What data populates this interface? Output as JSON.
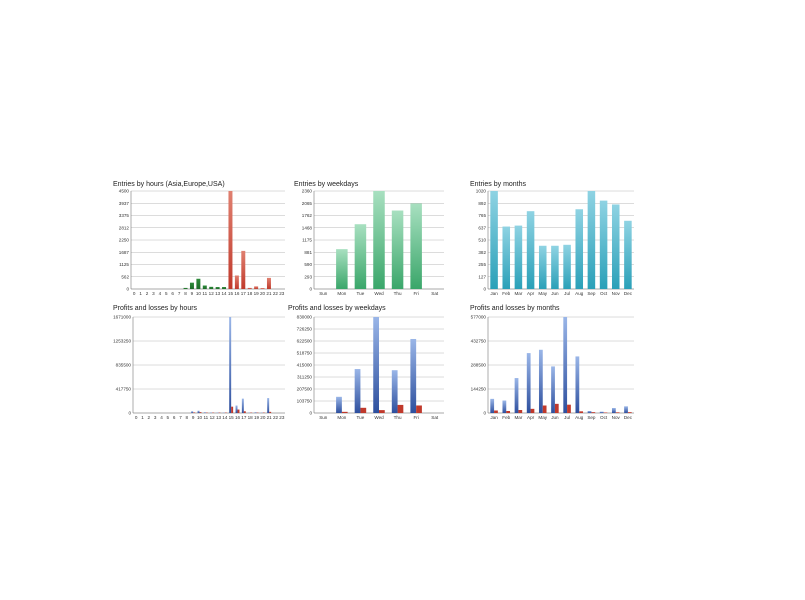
{
  "colors": {
    "green": "#2e8b3a",
    "green_dark": "#1d6a28",
    "red": "#c0392b",
    "red_light": "#e08070",
    "teal": "#2aa0b8",
    "teal_light": "#8fd3e3",
    "mint": "#3aa66a",
    "mint_light": "#a8e0c0",
    "blue": "#2d4f9e",
    "blue_light": "#9ab6e8",
    "loss": "#c0392b"
  },
  "chart_data": [
    {
      "id": "hours-entries",
      "type": "bar",
      "title": "Entries by hours (Asia,Europe,USA)",
      "categories": [
        "0",
        "1",
        "2",
        "3",
        "4",
        "5",
        "6",
        "7",
        "8",
        "9",
        "10",
        "11",
        "12",
        "13",
        "14",
        "15",
        "16",
        "17",
        "18",
        "19",
        "20",
        "21",
        "22",
        "23"
      ],
      "y_ticks": [
        "4500",
        "3937",
        "3375",
        "2812",
        "2250",
        "1687",
        "1125",
        "562",
        "0"
      ],
      "ylim": [
        0,
        4500
      ],
      "series": [
        {
          "values": [
            0,
            0,
            0,
            0,
            0,
            0,
            0,
            0,
            50,
            290,
            470,
            160,
            100,
            90,
            90,
            0,
            0,
            0,
            0,
            0,
            0,
            0,
            0,
            0
          ],
          "color_key": "green"
        },
        {
          "values": [
            0,
            0,
            0,
            0,
            0,
            0,
            0,
            0,
            0,
            0,
            0,
            0,
            0,
            0,
            0,
            4500,
            620,
            1750,
            50,
            120,
            40,
            510,
            0,
            0
          ],
          "color_key": "red"
        }
      ]
    },
    {
      "id": "weekday-entries",
      "type": "bar",
      "title": "Entries by weekdays",
      "categories": [
        "Sun",
        "Mon",
        "Tue",
        "Wed",
        "Thu",
        "Fri",
        "Sat"
      ],
      "y_ticks": [
        "2360",
        "2065",
        "1762",
        "1468",
        "1175",
        "881",
        "590",
        "293",
        "0"
      ],
      "ylim": [
        0,
        2360
      ],
      "series": [
        {
          "values": [
            0,
            960,
            1560,
            2360,
            1890,
            2060,
            0
          ],
          "color_key": "mint"
        }
      ]
    },
    {
      "id": "month-entries",
      "type": "bar",
      "title": "Entries by months",
      "categories": [
        "Jan",
        "Feb",
        "Mar",
        "Apr",
        "May",
        "Jun",
        "Jul",
        "Aug",
        "Sep",
        "Oct",
        "Nov",
        "Dec"
      ],
      "y_ticks": [
        "1020",
        "892",
        "765",
        "637",
        "510",
        "382",
        "255",
        "127",
        "0"
      ],
      "ylim": [
        0,
        1020
      ],
      "series": [
        {
          "values": [
            1020,
            650,
            660,
            810,
            450,
            450,
            460,
            830,
            1020,
            920,
            880,
            710
          ],
          "color_key": "teal"
        }
      ]
    },
    {
      "id": "hours-pl",
      "type": "bar",
      "title": "Profits and losses by hours",
      "categories": [
        "0",
        "1",
        "2",
        "3",
        "4",
        "5",
        "6",
        "7",
        "8",
        "9",
        "10",
        "11",
        "12",
        "13",
        "14",
        "15",
        "16",
        "17",
        "18",
        "19",
        "20",
        "21",
        "22",
        "23"
      ],
      "y_ticks": [
        "1671000",
        "1253250",
        "835500",
        "417750",
        "0"
      ],
      "ylim": [
        0,
        1671000
      ],
      "series": [
        {
          "name": "profit",
          "values": [
            0,
            0,
            0,
            0,
            0,
            0,
            0,
            0,
            0,
            30000,
            40000,
            12000,
            8000,
            5000,
            3000,
            1671000,
            130000,
            250000,
            5000,
            12000,
            5000,
            260000,
            0,
            0
          ],
          "color_key": "blue"
        },
        {
          "name": "loss",
          "values": [
            0,
            0,
            0,
            0,
            0,
            0,
            0,
            0,
            0,
            10000,
            15000,
            5000,
            3000,
            2000,
            1000,
            110000,
            60000,
            30000,
            2000,
            4000,
            2000,
            20000,
            0,
            0
          ],
          "color_key": "loss"
        }
      ]
    },
    {
      "id": "weekday-pl",
      "type": "bar",
      "title": "Profits and losses by weekdays",
      "categories": [
        "Sun",
        "Mon",
        "Tue",
        "Wed",
        "Thu",
        "Fri",
        "Sat"
      ],
      "y_ticks": [
        "830000",
        "726250",
        "622500",
        "518750",
        "415000",
        "311250",
        "207500",
        "103750",
        "0"
      ],
      "ylim": [
        0,
        830000
      ],
      "series": [
        {
          "name": "profit",
          "values": [
            0,
            140000,
            380000,
            830000,
            370000,
            640000,
            0
          ],
          "color_key": "blue"
        },
        {
          "name": "loss",
          "values": [
            0,
            10000,
            45000,
            25000,
            70000,
            65000,
            0
          ],
          "color_key": "loss"
        }
      ]
    },
    {
      "id": "month-pl",
      "type": "bar",
      "title": "Profits and losses by months",
      "categories": [
        "Jan",
        "Feb",
        "Mar",
        "Apr",
        "May",
        "Jun",
        "Jul",
        "Aug",
        "Sep",
        "Oct",
        "Nov",
        "Dec"
      ],
      "y_ticks": [
        "577000",
        "432750",
        "288500",
        "144250",
        "0"
      ],
      "ylim": [
        0,
        577000
      ],
      "series": [
        {
          "name": "profit",
          "values": [
            85000,
            75000,
            210000,
            360000,
            380000,
            280000,
            577000,
            340000,
            12000,
            8000,
            30000,
            40000
          ],
          "color_key": "blue"
        },
        {
          "name": "loss",
          "values": [
            15000,
            12000,
            18000,
            25000,
            45000,
            55000,
            50000,
            10000,
            5000,
            3000,
            4000,
            5000
          ],
          "color_key": "loss"
        }
      ]
    }
  ]
}
